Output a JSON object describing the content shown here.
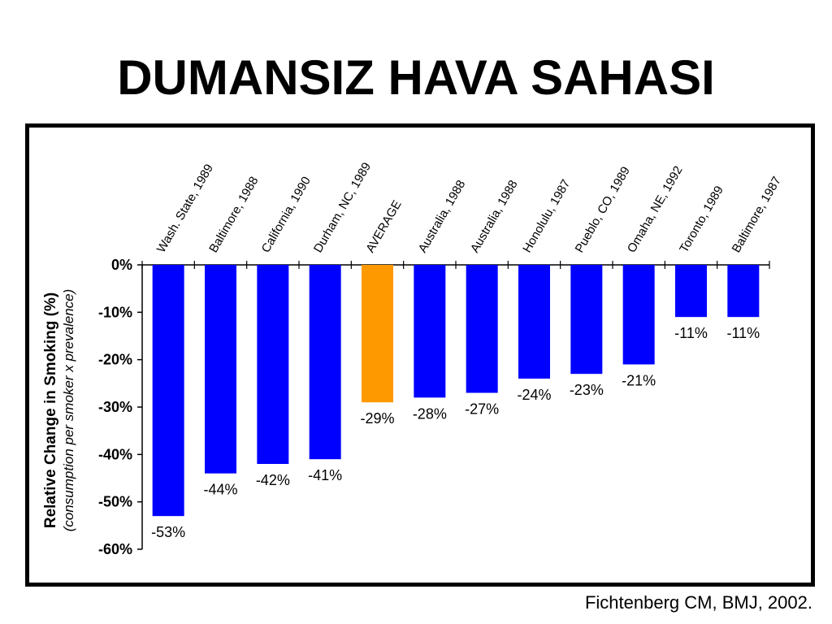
{
  "slide": {
    "title": "DUMANSIZ HAVA SAHASI",
    "citation": "Fichtenberg CM, BMJ, 2002."
  },
  "colors": {
    "bar": "#0000ff",
    "highlight": "#ff9900",
    "frame": "#000000"
  },
  "chart_data": {
    "type": "bar",
    "title": "",
    "ylabel": "Relative Change in Smoking (%)",
    "ylabel_sub": "(consumption per smoker x prevalence)",
    "xlabel": "",
    "categories": [
      "Wash. State, 1989",
      "Baltimore, 1988",
      "California, 1990",
      "Durham, NC, 1989",
      "AVERAGE",
      "Australia, 1988",
      "Australia, 1988",
      "Honolulu, 1987",
      "Pueblo, CO, 1989",
      "Omaha, NE, 1992",
      "Toronto, 1989",
      "Baltimore, 1987"
    ],
    "values": [
      -53,
      -44,
      -42,
      -41,
      -29,
      -28,
      -27,
      -24,
      -23,
      -21,
      -11,
      -11
    ],
    "value_labels": [
      "-53%",
      "-44%",
      "-42%",
      "-41%",
      "-29%",
      "-28%",
      "-27%",
      "-24%",
      "-23%",
      "-21%",
      "-11%",
      "-11%"
    ],
    "highlight_category": "AVERAGE",
    "ylim": [
      -60,
      0
    ],
    "yticks": [
      0,
      -10,
      -20,
      -30,
      -40,
      -50,
      -60
    ],
    "ytick_labels": [
      "0%",
      "-10%",
      "-20%",
      "-30%",
      "-40%",
      "-50%",
      "-60%"
    ],
    "category_axis_position": "top",
    "grid": false,
    "legend": "none"
  }
}
